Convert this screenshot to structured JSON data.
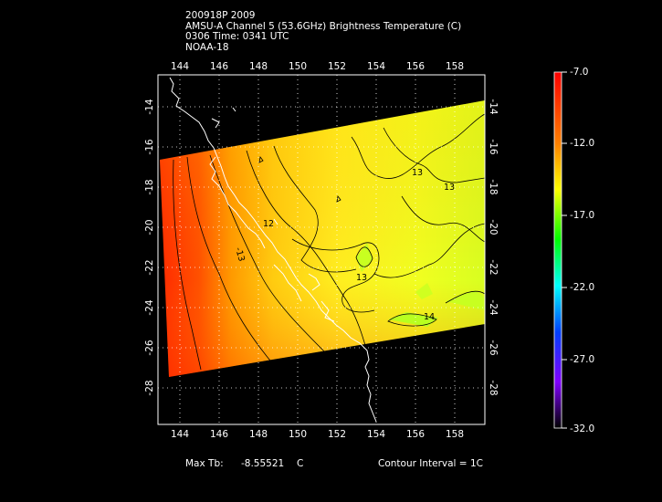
{
  "header": {
    "line1": "200918P 2009",
    "line2": "AMSU-A Channel 5 (53.6GHz) Brightness Temperature (C)",
    "line3": "0306 Time: 0341 UTC",
    "line4": "NOAA-18"
  },
  "map": {
    "lon_ticks": [
      "144",
      "146",
      "148",
      "150",
      "152",
      "154",
      "156",
      "158"
    ],
    "lat_ticks": [
      "-14",
      "-16",
      "-18",
      "-20",
      "-22",
      "-24",
      "-26",
      "-28"
    ],
    "contour_labels": [
      "12",
      "13",
      "13",
      "-13",
      "13",
      "14"
    ]
  },
  "colorbar": {
    "labels": [
      "-7.0",
      "-12.0",
      "-17.0",
      "-22.0",
      "-27.0",
      "-32.0"
    ],
    "colors": [
      "#ff0000",
      "#ff8000",
      "#ffff00",
      "#00ff00",
      "#00ffff",
      "#0040ff",
      "#8000ff",
      "#000000"
    ]
  },
  "footer": {
    "max_label": "Max Tb:",
    "max_value": "-8.55521",
    "max_unit": "C",
    "contour_interval": "Contour Interval = 1C"
  },
  "colors": {
    "warm": "#ff2a00",
    "mid": "#ffaa00",
    "cool": "#ffff20",
    "green_yellow": "#d8ff20"
  }
}
